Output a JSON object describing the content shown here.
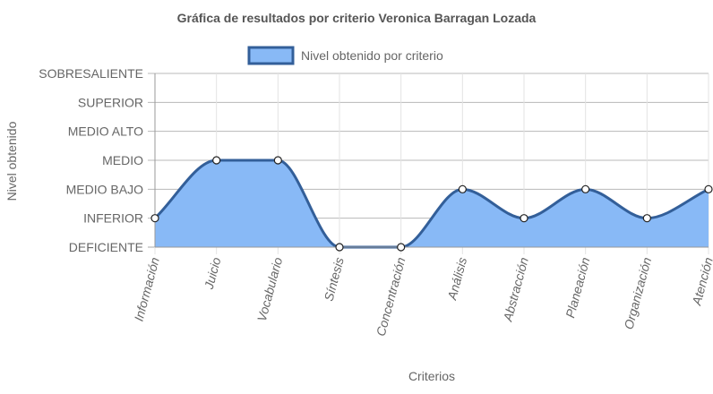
{
  "chart_data": {
    "type": "area",
    "title": "Gráfica de resultados por criterio Veronica Barragan Lozada",
    "xlabel": "Criterios",
    "ylabel": "Nivel obtenido",
    "categories": [
      "Información",
      "Juicio",
      "Vocabulario",
      "Síntesis",
      "Concentración",
      "Análisis",
      "Abstracción",
      "Planeación",
      "Organización",
      "Atención"
    ],
    "y_levels": [
      "DEFICIENTE",
      "INFERIOR",
      "MEDIO BAJO",
      "MEDIO",
      "MEDIO ALTO",
      "SUPERIOR",
      "SOBRESALIENTE"
    ],
    "ylim": [
      0,
      6
    ],
    "grid": true,
    "legend_position": "top",
    "series": [
      {
        "name": "Nivel obtenido por criterio",
        "values": [
          1,
          3,
          3,
          0,
          0,
          2,
          1,
          2,
          1,
          2
        ],
        "fill_color": "#88b9f6",
        "line_color": "#335f99"
      }
    ]
  }
}
